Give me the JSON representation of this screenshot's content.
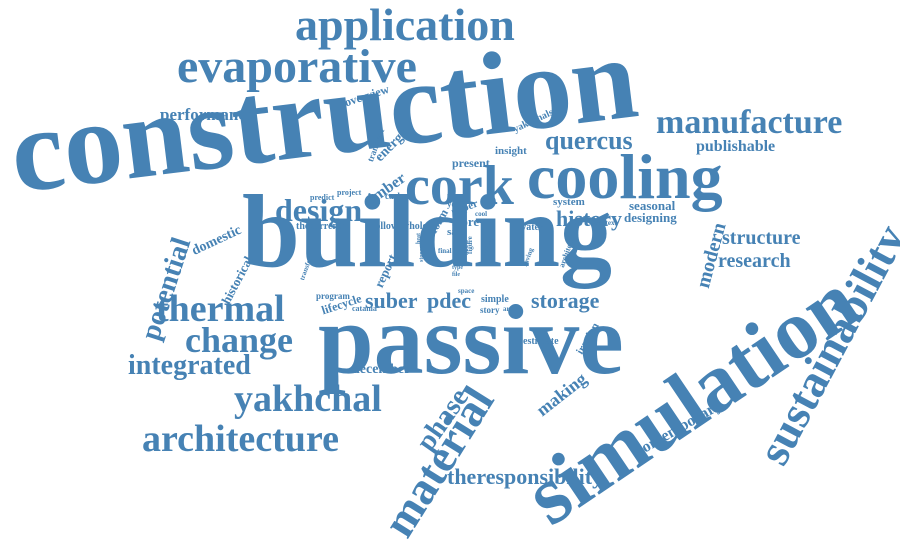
{
  "color": "#4682b4",
  "words": [
    {
      "text": "construction",
      "size": 5
    },
    {
      "text": "building",
      "size": 5
    },
    {
      "text": "passive",
      "size": 5
    },
    {
      "text": "simulation",
      "size": 5
    },
    {
      "text": "cooling",
      "size": 4
    },
    {
      "text": "cork",
      "size": 4
    },
    {
      "text": "application",
      "size": 4
    },
    {
      "text": "evaporative",
      "size": 4
    },
    {
      "text": "sustainability",
      "size": 4
    },
    {
      "text": "material",
      "size": 4
    },
    {
      "text": "architecture",
      "size": 3
    },
    {
      "text": "manufacture",
      "size": 3
    },
    {
      "text": "thermal",
      "size": 3
    },
    {
      "text": "change",
      "size": 3
    },
    {
      "text": "yakhchal",
      "size": 3
    },
    {
      "text": "design",
      "size": 3
    },
    {
      "text": "integrated",
      "size": 2
    },
    {
      "text": "potential",
      "size": 2
    },
    {
      "text": "phase",
      "size": 2
    },
    {
      "text": "quercus",
      "size": 2
    },
    {
      "text": "structure",
      "size": 2
    },
    {
      "text": "research",
      "size": 2
    },
    {
      "text": "modern",
      "size": 2
    },
    {
      "text": "history",
      "size": 2
    },
    {
      "text": "theresponsibility",
      "size": 2
    },
    {
      "text": "storage",
      "size": 2
    },
    {
      "text": "pdec",
      "size": 2
    },
    {
      "text": "suber",
      "size": 2
    },
    {
      "text": "making",
      "size": 2
    },
    {
      "text": "contemporary",
      "size": 1
    },
    {
      "text": "performance",
      "size": 1
    },
    {
      "text": "publishable",
      "size": 1
    },
    {
      "text": "seasonal",
      "size": 1
    },
    {
      "text": "designing",
      "size": 1
    },
    {
      "text": "timber",
      "size": 1
    },
    {
      "text": "december",
      "size": 1
    },
    {
      "text": "domestic",
      "size": 1
    },
    {
      "text": "historical",
      "size": 1
    },
    {
      "text": "energy",
      "size": 1
    },
    {
      "text": "overview",
      "size": 1
    },
    {
      "text": "lifecycle",
      "size": 1
    },
    {
      "text": "report",
      "size": 1
    },
    {
      "text": "form",
      "size": 1
    },
    {
      "text": "store",
      "size": 1
    },
    {
      "text": "iranian",
      "size": 1
    },
    {
      "text": "present",
      "size": 1
    },
    {
      "text": "insight",
      "size": 1
    },
    {
      "text": "system",
      "size": 1
    },
    {
      "text": "paper",
      "size": 1
    },
    {
      "text": "safe",
      "size": 1
    },
    {
      "text": "water",
      "size": 1
    },
    {
      "text": "follow",
      "size": 1
    },
    {
      "text": "whole",
      "size": 1
    },
    {
      "text": "thecurrent",
      "size": 1
    },
    {
      "text": "estimate",
      "size": 1
    },
    {
      "text": "yakhchals",
      "size": 1
    },
    {
      "text": "carbon",
      "size": 1
    },
    {
      "text": "predict",
      "size": 1
    },
    {
      "text": "project",
      "size": 1
    },
    {
      "text": "transient",
      "size": 1
    },
    {
      "text": "program",
      "size": 1
    },
    {
      "text": "catania",
      "size": 1
    },
    {
      "text": "simple",
      "size": 1
    },
    {
      "text": "story",
      "size": 1
    },
    {
      "text": "article",
      "size": 1
    },
    {
      "text": "space",
      "size": 1
    },
    {
      "text": "year",
      "size": 1
    },
    {
      "text": "cool",
      "size": 1
    },
    {
      "text": "life",
      "size": 1
    },
    {
      "text": "final",
      "size": 1
    },
    {
      "text": "step",
      "size": 1
    },
    {
      "text": "office",
      "size": 1
    },
    {
      "text": "context",
      "size": 1
    },
    {
      "text": "architect",
      "size": 1
    },
    {
      "text": "saving",
      "size": 1
    },
    {
      "text": "transfer",
      "size": 1
    },
    {
      "text": "heat",
      "size": 1
    },
    {
      "text": "type",
      "size": 1
    },
    {
      "text": "file",
      "size": 1
    },
    {
      "text": "rock",
      "size": 1
    },
    {
      "text": "stone",
      "size": 1
    },
    {
      "text": "figure",
      "size": 1
    }
  ]
}
